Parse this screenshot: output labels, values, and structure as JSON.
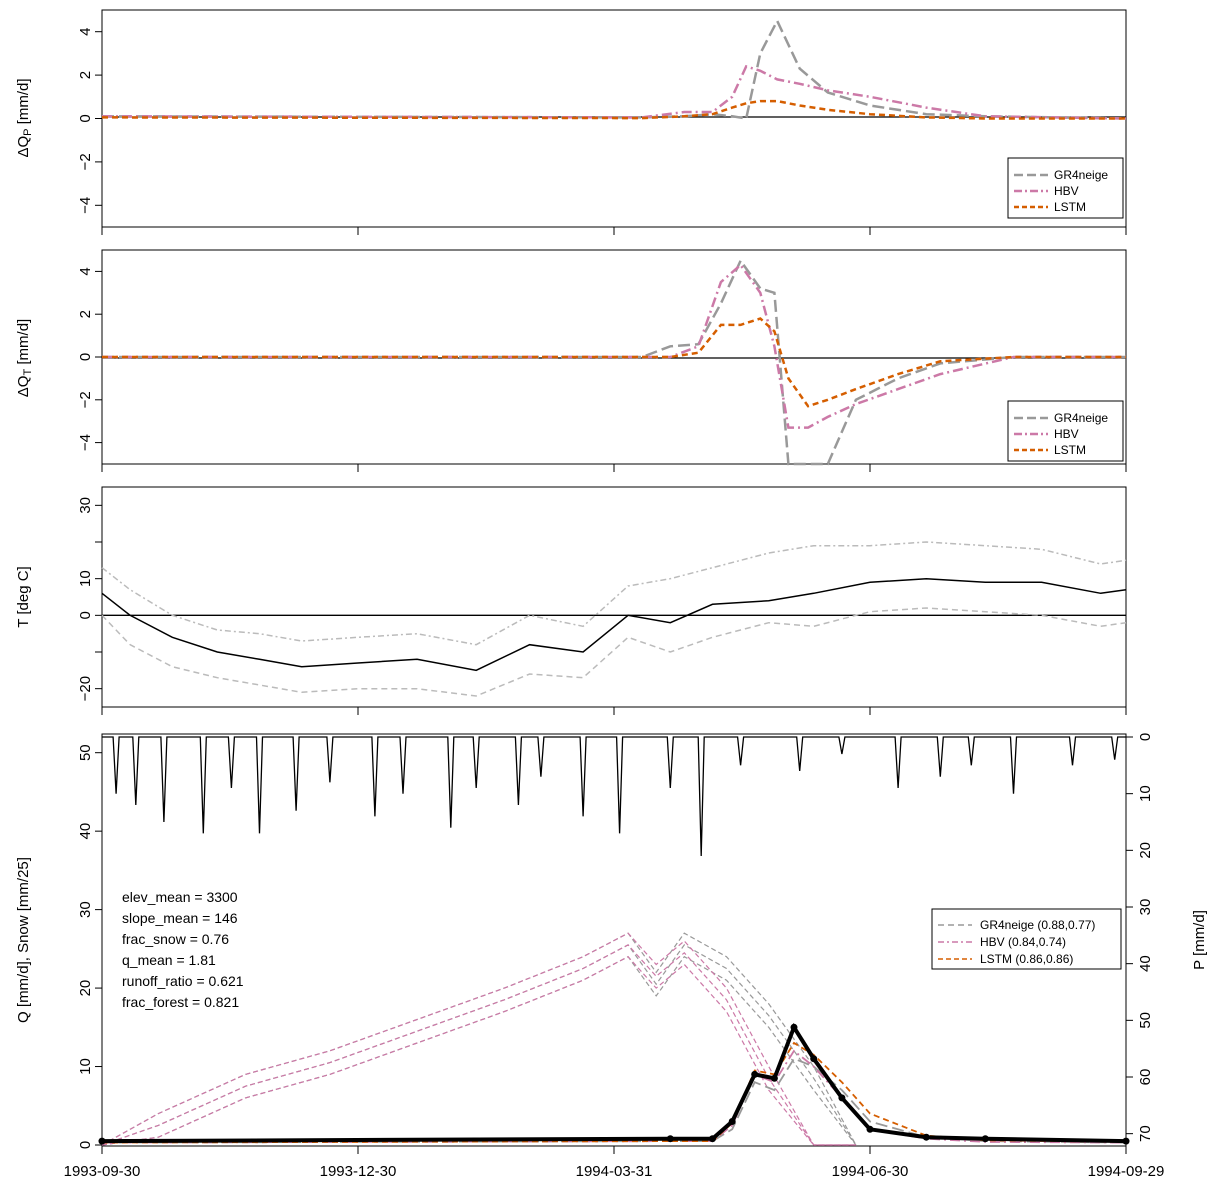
{
  "colors": {
    "GR4neige": "#999999",
    "HBV": "#CC79A7",
    "LSTM": "#D55E00",
    "obs": "#000000",
    "temp_range": "#bbbbbb"
  },
  "x_tick_labels": [
    "1993-09-30",
    "1993-12-30",
    "1994-03-31",
    "1994-06-30",
    "1994-09-29"
  ],
  "chart_data": [
    {
      "type": "line",
      "ylabel": "ΔQ_P [mm/d]",
      "ylabel_main": "ΔQ",
      "ylabel_sub": "P",
      "ylabel_unit": " [mm/d]",
      "ylim": [
        -5,
        5
      ],
      "yticks": [
        -4,
        -2,
        0,
        2,
        4
      ],
      "ytick_labels": [
        "−4",
        "−2",
        "0",
        "2",
        "4"
      ],
      "legend_position": "bottom-right",
      "x": [
        "1993-09-30",
        "1994-04-10",
        "1994-04-25",
        "1994-05-05",
        "1994-05-12",
        "1994-05-17",
        "1994-05-22",
        "1994-05-28",
        "1994-06-05",
        "1994-06-15",
        "1994-06-30",
        "1994-07-20",
        "1994-08-10",
        "1994-09-29"
      ],
      "series": [
        {
          "name": "GR4neige",
          "values": [
            0.1,
            0.05,
            0.1,
            0.2,
            0.1,
            0.0,
            3.0,
            4.5,
            2.3,
            1.2,
            0.6,
            0.2,
            0.1,
            0.0
          ]
        },
        {
          "name": "HBV",
          "values": [
            0.1,
            0.05,
            0.3,
            0.3,
            1.0,
            2.4,
            2.2,
            1.8,
            1.6,
            1.3,
            1.0,
            0.5,
            0.1,
            0.0
          ]
        },
        {
          "name": "LSTM",
          "values": [
            0.05,
            0.02,
            0.1,
            0.2,
            0.5,
            0.7,
            0.8,
            0.8,
            0.6,
            0.4,
            0.2,
            0.05,
            0.0,
            0.0
          ]
        }
      ]
    },
    {
      "type": "line",
      "ylabel": "ΔQ_T [mm/d]",
      "ylabel_main": "ΔQ",
      "ylabel_sub": "T",
      "ylabel_unit": " [mm/d]",
      "ylim": [
        -5,
        5
      ],
      "yticks": [
        -4,
        -2,
        0,
        2,
        4
      ],
      "ytick_labels": [
        "−4",
        "−2",
        "0",
        "2",
        "4"
      ],
      "legend_position": "bottom-right",
      "x": [
        "1993-09-30",
        "1994-04-10",
        "1994-04-20",
        "1994-04-30",
        "1994-05-08",
        "1994-05-15",
        "1994-05-22",
        "1994-05-27",
        "1994-06-01",
        "1994-06-08",
        "1994-06-15",
        "1994-06-25",
        "1994-07-10",
        "1994-07-25",
        "1994-08-20",
        "1994-09-29"
      ],
      "series": [
        {
          "name": "GR4neige",
          "values": [
            0.0,
            0.0,
            0.5,
            0.6,
            2.5,
            4.5,
            3.2,
            3.0,
            -5.0,
            -5.0,
            -5.0,
            -2.0,
            -1.0,
            -0.3,
            0.0,
            0.0
          ]
        },
        {
          "name": "HBV",
          "values": [
            0.0,
            0.0,
            0.0,
            0.5,
            3.5,
            4.3,
            3.0,
            0.5,
            -3.3,
            -3.3,
            -2.8,
            -2.2,
            -1.5,
            -0.8,
            0.0,
            0.0
          ]
        },
        {
          "name": "LSTM",
          "values": [
            0.0,
            0.0,
            0.0,
            0.2,
            1.5,
            1.5,
            1.8,
            1.2,
            -1.0,
            -2.3,
            -2.0,
            -1.5,
            -0.8,
            -0.2,
            0.0,
            0.0
          ]
        }
      ]
    },
    {
      "type": "line",
      "ylabel": "T [deg C]",
      "ylim": [
        -25,
        35
      ],
      "yticks": [
        -20,
        -10,
        0,
        10,
        20,
        30
      ],
      "ytick_labels": [
        "−20",
        "",
        "0",
        "10",
        "",
        "30"
      ],
      "x": [
        "1993-09-30",
        "1993-10-10",
        "1993-10-25",
        "1993-11-10",
        "1993-11-25",
        "1993-12-10",
        "1993-12-30",
        "1994-01-20",
        "1994-02-10",
        "1994-03-01",
        "1994-03-20",
        "1994-04-05",
        "1994-04-20",
        "1994-05-05",
        "1994-05-25",
        "1994-06-10",
        "1994-06-30",
        "1994-07-20",
        "1994-08-10",
        "1994-08-30",
        "1994-09-20",
        "1994-09-29"
      ],
      "series": [
        {
          "name": "mean",
          "values": [
            6,
            0,
            -6,
            -10,
            -12,
            -14,
            -13,
            -12,
            -15,
            -8,
            -10,
            0,
            -2,
            3,
            4,
            6,
            9,
            10,
            9,
            9,
            6,
            7
          ]
        },
        {
          "name": "max",
          "values": [
            13,
            7,
            0,
            -4,
            -5,
            -7,
            -6,
            -5,
            -8,
            0,
            -3,
            8,
            10,
            13,
            17,
            19,
            19,
            20,
            19,
            18,
            14,
            15
          ]
        },
        {
          "name": "min",
          "values": [
            0,
            -8,
            -14,
            -17,
            -19,
            -21,
            -20,
            -20,
            -22,
            -16,
            -17,
            -6,
            -10,
            -6,
            -2,
            -3,
            1,
            2,
            1,
            0,
            -3,
            -2
          ]
        }
      ]
    },
    {
      "type": "line",
      "ylabel": "Q [mm/d], Snow [mm/25]",
      "ylabel_right": "P [mm/d]",
      "ylim": [
        0,
        52
      ],
      "yticks": [
        0,
        10,
        20,
        30,
        40,
        50
      ],
      "y2lim": [
        0,
        72
      ],
      "y2ticks": [
        0,
        10,
        20,
        30,
        40,
        50,
        60,
        70
      ],
      "legend_position": "center-right",
      "attributes": [
        "elev_mean = 3300",
        "slope_mean = 146",
        "frac_snow = 0.76",
        "q_mean = 1.81",
        "runoff_ratio = 0.621",
        "frac_forest = 0.821"
      ],
      "legend": [
        "GR4neige (0.88,0.77)",
        "HBV (0.84,0.74)",
        "LSTM (0.86,0.86)"
      ],
      "x": [
        "1993-09-30",
        "1994-04-20",
        "1994-05-05",
        "1994-05-12",
        "1994-05-20",
        "1994-05-27",
        "1994-06-03",
        "1994-06-10",
        "1994-06-20",
        "1994-06-30",
        "1994-07-20",
        "1994-08-10",
        "1994-09-29"
      ],
      "series": [
        {
          "name": "obs",
          "values": [
            0.5,
            0.8,
            0.8,
            3.0,
            9.0,
            8.5,
            15.0,
            11.0,
            6.0,
            2.0,
            1.0,
            0.8,
            0.5
          ]
        },
        {
          "name": "GR4neige",
          "values": [
            0.3,
            0.5,
            0.5,
            2.0,
            8.0,
            7.0,
            11.0,
            10.0,
            7.0,
            3.0,
            1.0,
            0.5,
            0.3
          ]
        },
        {
          "name": "HBV",
          "values": [
            0.3,
            0.5,
            0.5,
            2.5,
            9.0,
            8.0,
            12.0,
            10.0,
            6.0,
            2.0,
            0.8,
            0.4,
            0.3
          ]
        },
        {
          "name": "LSTM",
          "values": [
            0.3,
            0.5,
            0.5,
            2.8,
            9.5,
            9.0,
            13.0,
            11.5,
            8.0,
            4.0,
            1.2,
            0.6,
            0.4
          ]
        }
      ],
      "snow": {
        "x": [
          "1993-09-30",
          "1993-10-20",
          "1993-11-20",
          "1993-12-20",
          "1994-01-20",
          "1994-02-20",
          "1994-03-20",
          "1994-04-05",
          "1994-04-15",
          "1994-04-25",
          "1994-05-10",
          "1994-05-25",
          "1994-06-10",
          "1994-06-25"
        ],
        "GR4neige": [
          0,
          4,
          9,
          12,
          16,
          20,
          24,
          27,
          22,
          27,
          24,
          18,
          10,
          0
        ],
        "HBV": [
          0,
          4,
          9,
          12,
          16,
          20,
          24,
          27,
          23,
          26,
          20,
          10,
          0,
          0
        ]
      },
      "precip": {
        "x": [
          "1993-10-05",
          "1993-10-12",
          "1993-10-22",
          "1993-11-05",
          "1993-11-15",
          "1993-11-25",
          "1993-12-08",
          "1993-12-20",
          "1994-01-05",
          "1994-01-15",
          "1994-02-01",
          "1994-02-10",
          "1994-02-25",
          "1994-03-05",
          "1994-03-20",
          "1994-04-02",
          "1994-04-20",
          "1994-05-01",
          "1994-05-15",
          "1994-06-05",
          "1994-06-20",
          "1994-07-10",
          "1994-07-25",
          "1994-08-05",
          "1994-08-20",
          "1994-09-10",
          "1994-09-25"
        ],
        "values": [
          10,
          12,
          15,
          17,
          9,
          17,
          13,
          8,
          14,
          10,
          16,
          9,
          12,
          7,
          14,
          17,
          9,
          21,
          5,
          6,
          3,
          9,
          7,
          5,
          10,
          5,
          4
        ]
      }
    }
  ]
}
